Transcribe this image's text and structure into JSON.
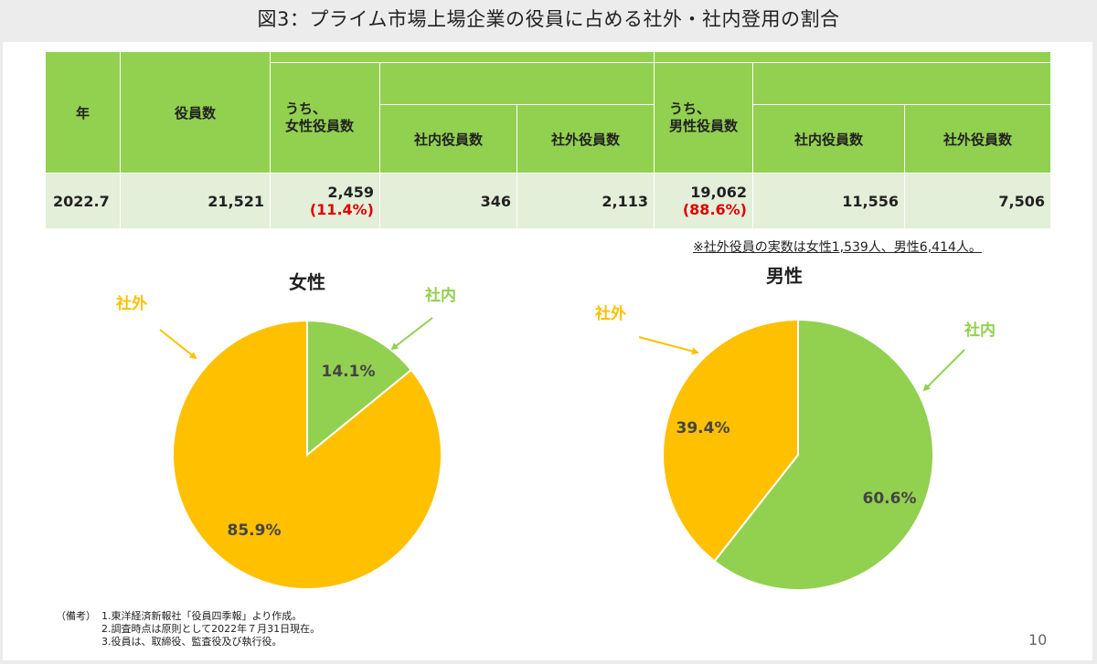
{
  "title": "図3：プライム市場上場企業の役員に占める社外・社内登用の割合",
  "table": {
    "headers": {
      "year": "年",
      "officers": "役員数",
      "female_group": [
        "うち、",
        "女性役員数"
      ],
      "female_inside": "社内役員数",
      "female_outside": "社外役員数",
      "male_group": [
        "うち、",
        "男性役員数"
      ],
      "male_inside": "社内役員数",
      "male_outside": "社外役員数"
    },
    "row": {
      "year": "2022.7",
      "officers": "21,521",
      "female_total": "2,459",
      "female_pct": "(11.4%)",
      "female_inside": "346",
      "female_outside": "2,113",
      "male_total": "19,062",
      "male_pct": "(88.6%)",
      "male_inside": "11,556",
      "male_outside": "7,506"
    }
  },
  "note": "※社外役員の実数は女性1,539人、男性6,414人。",
  "colors": {
    "inside": "#92d050",
    "outside": "#ffc000",
    "pct_red": "#e00000",
    "header_green": "#92d050",
    "row_green": "#e3efd9"
  },
  "chart_data": [
    {
      "type": "pie",
      "title": "女性",
      "slices": [
        {
          "name": "社内",
          "value": 14.1,
          "label": "14.1%",
          "color": "#92d050"
        },
        {
          "name": "社外",
          "value": 85.9,
          "label": "85.9%",
          "color": "#ffc000"
        }
      ]
    },
    {
      "type": "pie",
      "title": "男性",
      "slices": [
        {
          "name": "社内",
          "value": 60.6,
          "label": "60.6%",
          "color": "#92d050"
        },
        {
          "name": "社外",
          "value": 39.4,
          "label": "39.4%",
          "color": "#ffc000"
        }
      ]
    }
  ],
  "footnote": {
    "key": "（備考）",
    "lines": [
      "1.東洋経済新報社「役員四季報」より作成。",
      "2.調査時点は原則として2022年７月31日現在。",
      "3.役員は、取締役、監査役及び執行役。"
    ]
  },
  "page_number": "10"
}
